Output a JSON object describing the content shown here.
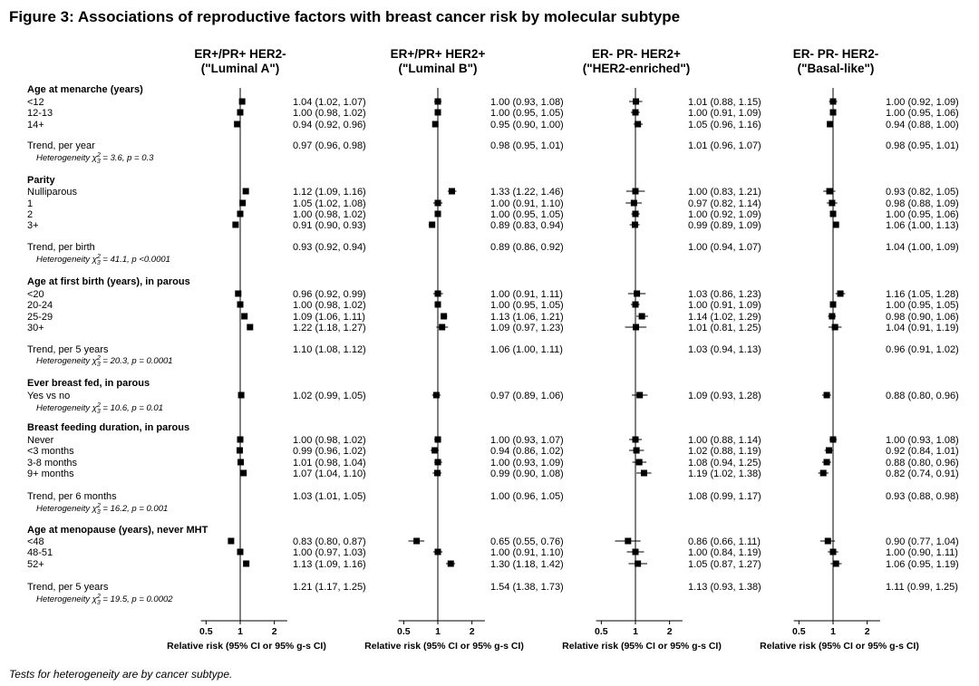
{
  "title": "Figure 3: Associations of reproductive factors with breast cancer risk by molecular subtype",
  "footnote": "Tests for heterogeneity are by cancer subtype.",
  "chart_data": {
    "type": "forest",
    "x_scale": "log",
    "xlim": [
      0.45,
      2.6
    ],
    "ticks": [
      "0.5",
      "1",
      "2"
    ],
    "tick_values": [
      0.5,
      1,
      2
    ],
    "xlabel": "Relative risk (95% CI or 95% g-s CI)",
    "panels": [
      {
        "line1": "ER+/PR+ HER2-",
        "line2": "(\"Luminal A\")"
      },
      {
        "line1": "ER+/PR+ HER2+",
        "line2": "(\"Luminal B\")"
      },
      {
        "line1": "ER- PR- HER2+",
        "line2": "(\"HER2-enriched\")"
      },
      {
        "line1": "ER- PR- HER2-",
        "line2": "(\"Basal-like\")"
      }
    ],
    "rows": [
      {
        "kind": "header",
        "label": "Age at menarche (years)"
      },
      {
        "kind": "est",
        "label": "<12",
        "est": [
          [
            1.04,
            1.02,
            1.07
          ],
          [
            1.0,
            0.93,
            1.08
          ],
          [
            1.01,
            0.88,
            1.15
          ],
          [
            1.0,
            0.92,
            1.09
          ]
        ],
        "text": [
          "1.04 (1.02, 1.07)",
          "1.00 (0.93, 1.08)",
          "1.01 (0.88, 1.15)",
          "1.00 (0.92, 1.09)"
        ]
      },
      {
        "kind": "est",
        "label": "12-13",
        "est": [
          [
            1.0,
            0.98,
            1.02
          ],
          [
            1.0,
            0.95,
            1.05
          ],
          [
            1.0,
            0.91,
            1.09
          ],
          [
            1.0,
            0.95,
            1.06
          ]
        ],
        "text": [
          "1.00 (0.98, 1.02)",
          "1.00 (0.95, 1.05)",
          "1.00 (0.91, 1.09)",
          "1.00 (0.95, 1.06)"
        ]
      },
      {
        "kind": "est",
        "label": "14+",
        "est": [
          [
            0.94,
            0.92,
            0.96
          ],
          [
            0.95,
            0.9,
            1.0
          ],
          [
            1.05,
            0.96,
            1.16
          ],
          [
            0.94,
            0.88,
            1.0
          ]
        ],
        "text": [
          "0.94 (0.92, 0.96)",
          "0.95 (0.90, 1.00)",
          "1.05 (0.96, 1.16)",
          "0.94 (0.88, 1.00)"
        ]
      },
      {
        "kind": "trend",
        "label": "Trend, per year",
        "text": [
          "0.97 (0.96, 0.98)",
          "0.98 (0.95, 1.01)",
          "1.01 (0.96, 1.07)",
          "0.98 (0.95, 1.01)"
        ]
      },
      {
        "kind": "het",
        "label": "Heterogeneity χ",
        "sup": "2",
        "sub": "3",
        "rest": " = 3.6, p = 0.3"
      },
      {
        "kind": "header",
        "label": "Parity"
      },
      {
        "kind": "est",
        "label": "Nulliparous",
        "est": [
          [
            1.12,
            1.09,
            1.16
          ],
          [
            1.33,
            1.22,
            1.46
          ],
          [
            1.0,
            0.83,
            1.21
          ],
          [
            0.93,
            0.82,
            1.05
          ]
        ],
        "text": [
          "1.12 (1.09, 1.16)",
          "1.33 (1.22, 1.46)",
          "1.00 (0.83, 1.21)",
          "0.93 (0.82, 1.05)"
        ]
      },
      {
        "kind": "est",
        "label": "1",
        "est": [
          [
            1.05,
            1.02,
            1.08
          ],
          [
            1.0,
            0.91,
            1.1
          ],
          [
            0.97,
            0.82,
            1.14
          ],
          [
            0.98,
            0.88,
            1.09
          ]
        ],
        "text": [
          "1.05 (1.02, 1.08)",
          "1.00 (0.91, 1.10)",
          "0.97 (0.82, 1.14)",
          "0.98 (0.88, 1.09)"
        ]
      },
      {
        "kind": "est",
        "label": "2",
        "est": [
          [
            1.0,
            0.98,
            1.02
          ],
          [
            1.0,
            0.95,
            1.05
          ],
          [
            1.0,
            0.92,
            1.09
          ],
          [
            1.0,
            0.95,
            1.06
          ]
        ],
        "text": [
          "1.00 (0.98, 1.02)",
          "1.00 (0.95, 1.05)",
          "1.00 (0.92, 1.09)",
          "1.00 (0.95, 1.06)"
        ]
      },
      {
        "kind": "est",
        "label": "3+",
        "est": [
          [
            0.91,
            0.9,
            0.93
          ],
          [
            0.89,
            0.83,
            0.94
          ],
          [
            0.99,
            0.89,
            1.09
          ],
          [
            1.06,
            1.0,
            1.13
          ]
        ],
        "text": [
          "0.91 (0.90, 0.93)",
          "0.89 (0.83, 0.94)",
          "0.99 (0.89, 1.09)",
          "1.06 (1.00, 1.13)"
        ]
      },
      {
        "kind": "trend",
        "label": "Trend, per birth",
        "text": [
          "0.93 (0.92, 0.94)",
          "0.89 (0.86, 0.92)",
          "1.00 (0.94, 1.07)",
          "1.04 (1.00, 1.09)"
        ]
      },
      {
        "kind": "het",
        "label": "Heterogeneity χ",
        "sup": "2",
        "sub": "3",
        "rest": " = 41.1, p <0.0001"
      },
      {
        "kind": "header",
        "label": "Age at first birth (years), in parous"
      },
      {
        "kind": "est",
        "label": "<20",
        "est": [
          [
            0.96,
            0.92,
            0.99
          ],
          [
            1.0,
            0.91,
            1.11
          ],
          [
            1.03,
            0.86,
            1.23
          ],
          [
            1.16,
            1.05,
            1.28
          ]
        ],
        "text": [
          "0.96 (0.92, 0.99)",
          "1.00 (0.91, 1.11)",
          "1.03 (0.86, 1.23)",
          "1.16 (1.05, 1.28)"
        ]
      },
      {
        "kind": "est",
        "label": "20-24",
        "est": [
          [
            1.0,
            0.98,
            1.02
          ],
          [
            1.0,
            0.95,
            1.05
          ],
          [
            1.0,
            0.91,
            1.09
          ],
          [
            1.0,
            0.95,
            1.05
          ]
        ],
        "text": [
          "1.00 (0.98, 1.02)",
          "1.00 (0.95, 1.05)",
          "1.00 (0.91, 1.09)",
          "1.00 (0.95, 1.05)"
        ]
      },
      {
        "kind": "est",
        "label": "25-29",
        "est": [
          [
            1.09,
            1.06,
            1.11
          ],
          [
            1.13,
            1.06,
            1.21
          ],
          [
            1.14,
            1.02,
            1.29
          ],
          [
            0.98,
            0.9,
            1.06
          ]
        ],
        "text": [
          "1.09 (1.06, 1.11)",
          "1.13 (1.06, 1.21)",
          "1.14 (1.02, 1.29)",
          "0.98 (0.90, 1.06)"
        ]
      },
      {
        "kind": "est",
        "label": "30+",
        "est": [
          [
            1.22,
            1.18,
            1.27
          ],
          [
            1.09,
            0.97,
            1.23
          ],
          [
            1.01,
            0.81,
            1.25
          ],
          [
            1.04,
            0.91,
            1.19
          ]
        ],
        "text": [
          "1.22 (1.18, 1.27)",
          "1.09 (0.97, 1.23)",
          "1.01 (0.81, 1.25)",
          "1.04 (0.91, 1.19)"
        ]
      },
      {
        "kind": "trend",
        "label": "Trend, per 5 years",
        "text": [
          "1.10 (1.08, 1.12)",
          "1.06 (1.00, 1.11)",
          "1.03 (0.94, 1.13)",
          "0.96 (0.91, 1.02)"
        ]
      },
      {
        "kind": "het",
        "label": "Heterogeneity χ",
        "sup": "2",
        "sub": "3",
        "rest": " = 20.3, p = 0.0001"
      },
      {
        "kind": "header",
        "label": "Ever breast fed, in parous"
      },
      {
        "kind": "est",
        "label": "Yes vs no",
        "est": [
          [
            1.02,
            0.99,
            1.05
          ],
          [
            0.97,
            0.89,
            1.06
          ],
          [
            1.09,
            0.93,
            1.28
          ],
          [
            0.88,
            0.8,
            0.96
          ]
        ],
        "text": [
          "1.02 (0.99, 1.05)",
          "0.97 (0.89, 1.06)",
          "1.09 (0.93, 1.28)",
          "0.88 (0.80, 0.96)"
        ]
      },
      {
        "kind": "het",
        "label": "Heterogeneity χ",
        "sup": "2",
        "sub": "3",
        "rest": " = 10.6, p = 0.01"
      },
      {
        "kind": "header",
        "label": "Breast feeding duration, in parous"
      },
      {
        "kind": "est",
        "label": "Never",
        "est": [
          [
            1.0,
            0.98,
            1.02
          ],
          [
            1.0,
            0.93,
            1.07
          ],
          [
            1.0,
            0.88,
            1.14
          ],
          [
            1.0,
            0.93,
            1.08
          ]
        ],
        "text": [
          "1.00 (0.98, 1.02)",
          "1.00 (0.93, 1.07)",
          "1.00 (0.88, 1.14)",
          "1.00 (0.93, 1.08)"
        ]
      },
      {
        "kind": "est",
        "label": "<3 months",
        "est": [
          [
            0.99,
            0.96,
            1.02
          ],
          [
            0.94,
            0.86,
            1.02
          ],
          [
            1.02,
            0.88,
            1.19
          ],
          [
            0.92,
            0.84,
            1.01
          ]
        ],
        "text": [
          "0.99 (0.96, 1.02)",
          "0.94 (0.86, 1.02)",
          "1.02 (0.88, 1.19)",
          "0.92 (0.84, 1.01)"
        ]
      },
      {
        "kind": "est",
        "label": "3-8 months",
        "est": [
          [
            1.01,
            0.98,
            1.04
          ],
          [
            1.0,
            0.93,
            1.09
          ],
          [
            1.08,
            0.94,
            1.25
          ],
          [
            0.88,
            0.8,
            0.96
          ]
        ],
        "text": [
          "1.01 (0.98, 1.04)",
          "1.00 (0.93, 1.09)",
          "1.08 (0.94, 1.25)",
          "0.88 (0.80, 0.96)"
        ]
      },
      {
        "kind": "est",
        "label": "9+ months",
        "est": [
          [
            1.07,
            1.04,
            1.1
          ],
          [
            0.99,
            0.9,
            1.08
          ],
          [
            1.19,
            1.02,
            1.38
          ],
          [
            0.82,
            0.74,
            0.91
          ]
        ],
        "text": [
          "1.07 (1.04, 1.10)",
          "0.99 (0.90, 1.08)",
          "1.19 (1.02, 1.38)",
          "0.82 (0.74, 0.91)"
        ]
      },
      {
        "kind": "trend",
        "label": "Trend, per 6 months",
        "text": [
          "1.03 (1.01, 1.05)",
          "1.00 (0.96, 1.05)",
          "1.08 (0.99, 1.17)",
          "0.93 (0.88, 0.98)"
        ]
      },
      {
        "kind": "het",
        "label": "Heterogeneity χ",
        "sup": "2",
        "sub": "3",
        "rest": " = 16.2, p = 0.001"
      },
      {
        "kind": "header",
        "label": "Age at menopause (years), never MHT"
      },
      {
        "kind": "est",
        "label": "<48",
        "est": [
          [
            0.83,
            0.8,
            0.87
          ],
          [
            0.65,
            0.55,
            0.76
          ],
          [
            0.86,
            0.66,
            1.11
          ],
          [
            0.9,
            0.77,
            1.04
          ]
        ],
        "text": [
          "0.83 (0.80, 0.87)",
          "0.65 (0.55, 0.76)",
          "0.86 (0.66, 1.11)",
          "0.90 (0.77, 1.04)"
        ]
      },
      {
        "kind": "est",
        "label": "48-51",
        "est": [
          [
            1.0,
            0.97,
            1.03
          ],
          [
            1.0,
            0.91,
            1.1
          ],
          [
            1.0,
            0.84,
            1.19
          ],
          [
            1.0,
            0.9,
            1.11
          ]
        ],
        "text": [
          "1.00 (0.97, 1.03)",
          "1.00 (0.91, 1.10)",
          "1.00 (0.84, 1.19)",
          "1.00 (0.90, 1.11)"
        ]
      },
      {
        "kind": "est",
        "label": "52+",
        "est": [
          [
            1.13,
            1.09,
            1.16
          ],
          [
            1.3,
            1.18,
            1.42
          ],
          [
            1.05,
            0.87,
            1.27
          ],
          [
            1.06,
            0.95,
            1.19
          ]
        ],
        "text": [
          "1.13 (1.09, 1.16)",
          "1.30 (1.18, 1.42)",
          "1.05 (0.87, 1.27)",
          "1.06 (0.95, 1.19)"
        ]
      },
      {
        "kind": "trend",
        "label": "Trend, per 5 years",
        "text": [
          "1.21 (1.17, 1.25)",
          "1.54 (1.38, 1.73)",
          "1.13 (0.93, 1.38)",
          "1.11 (0.99, 1.25)"
        ]
      },
      {
        "kind": "het",
        "label": "Heterogeneity χ",
        "sup": "2",
        "sub": "3",
        "rest": " = 19.5, p = 0.0002"
      }
    ]
  }
}
